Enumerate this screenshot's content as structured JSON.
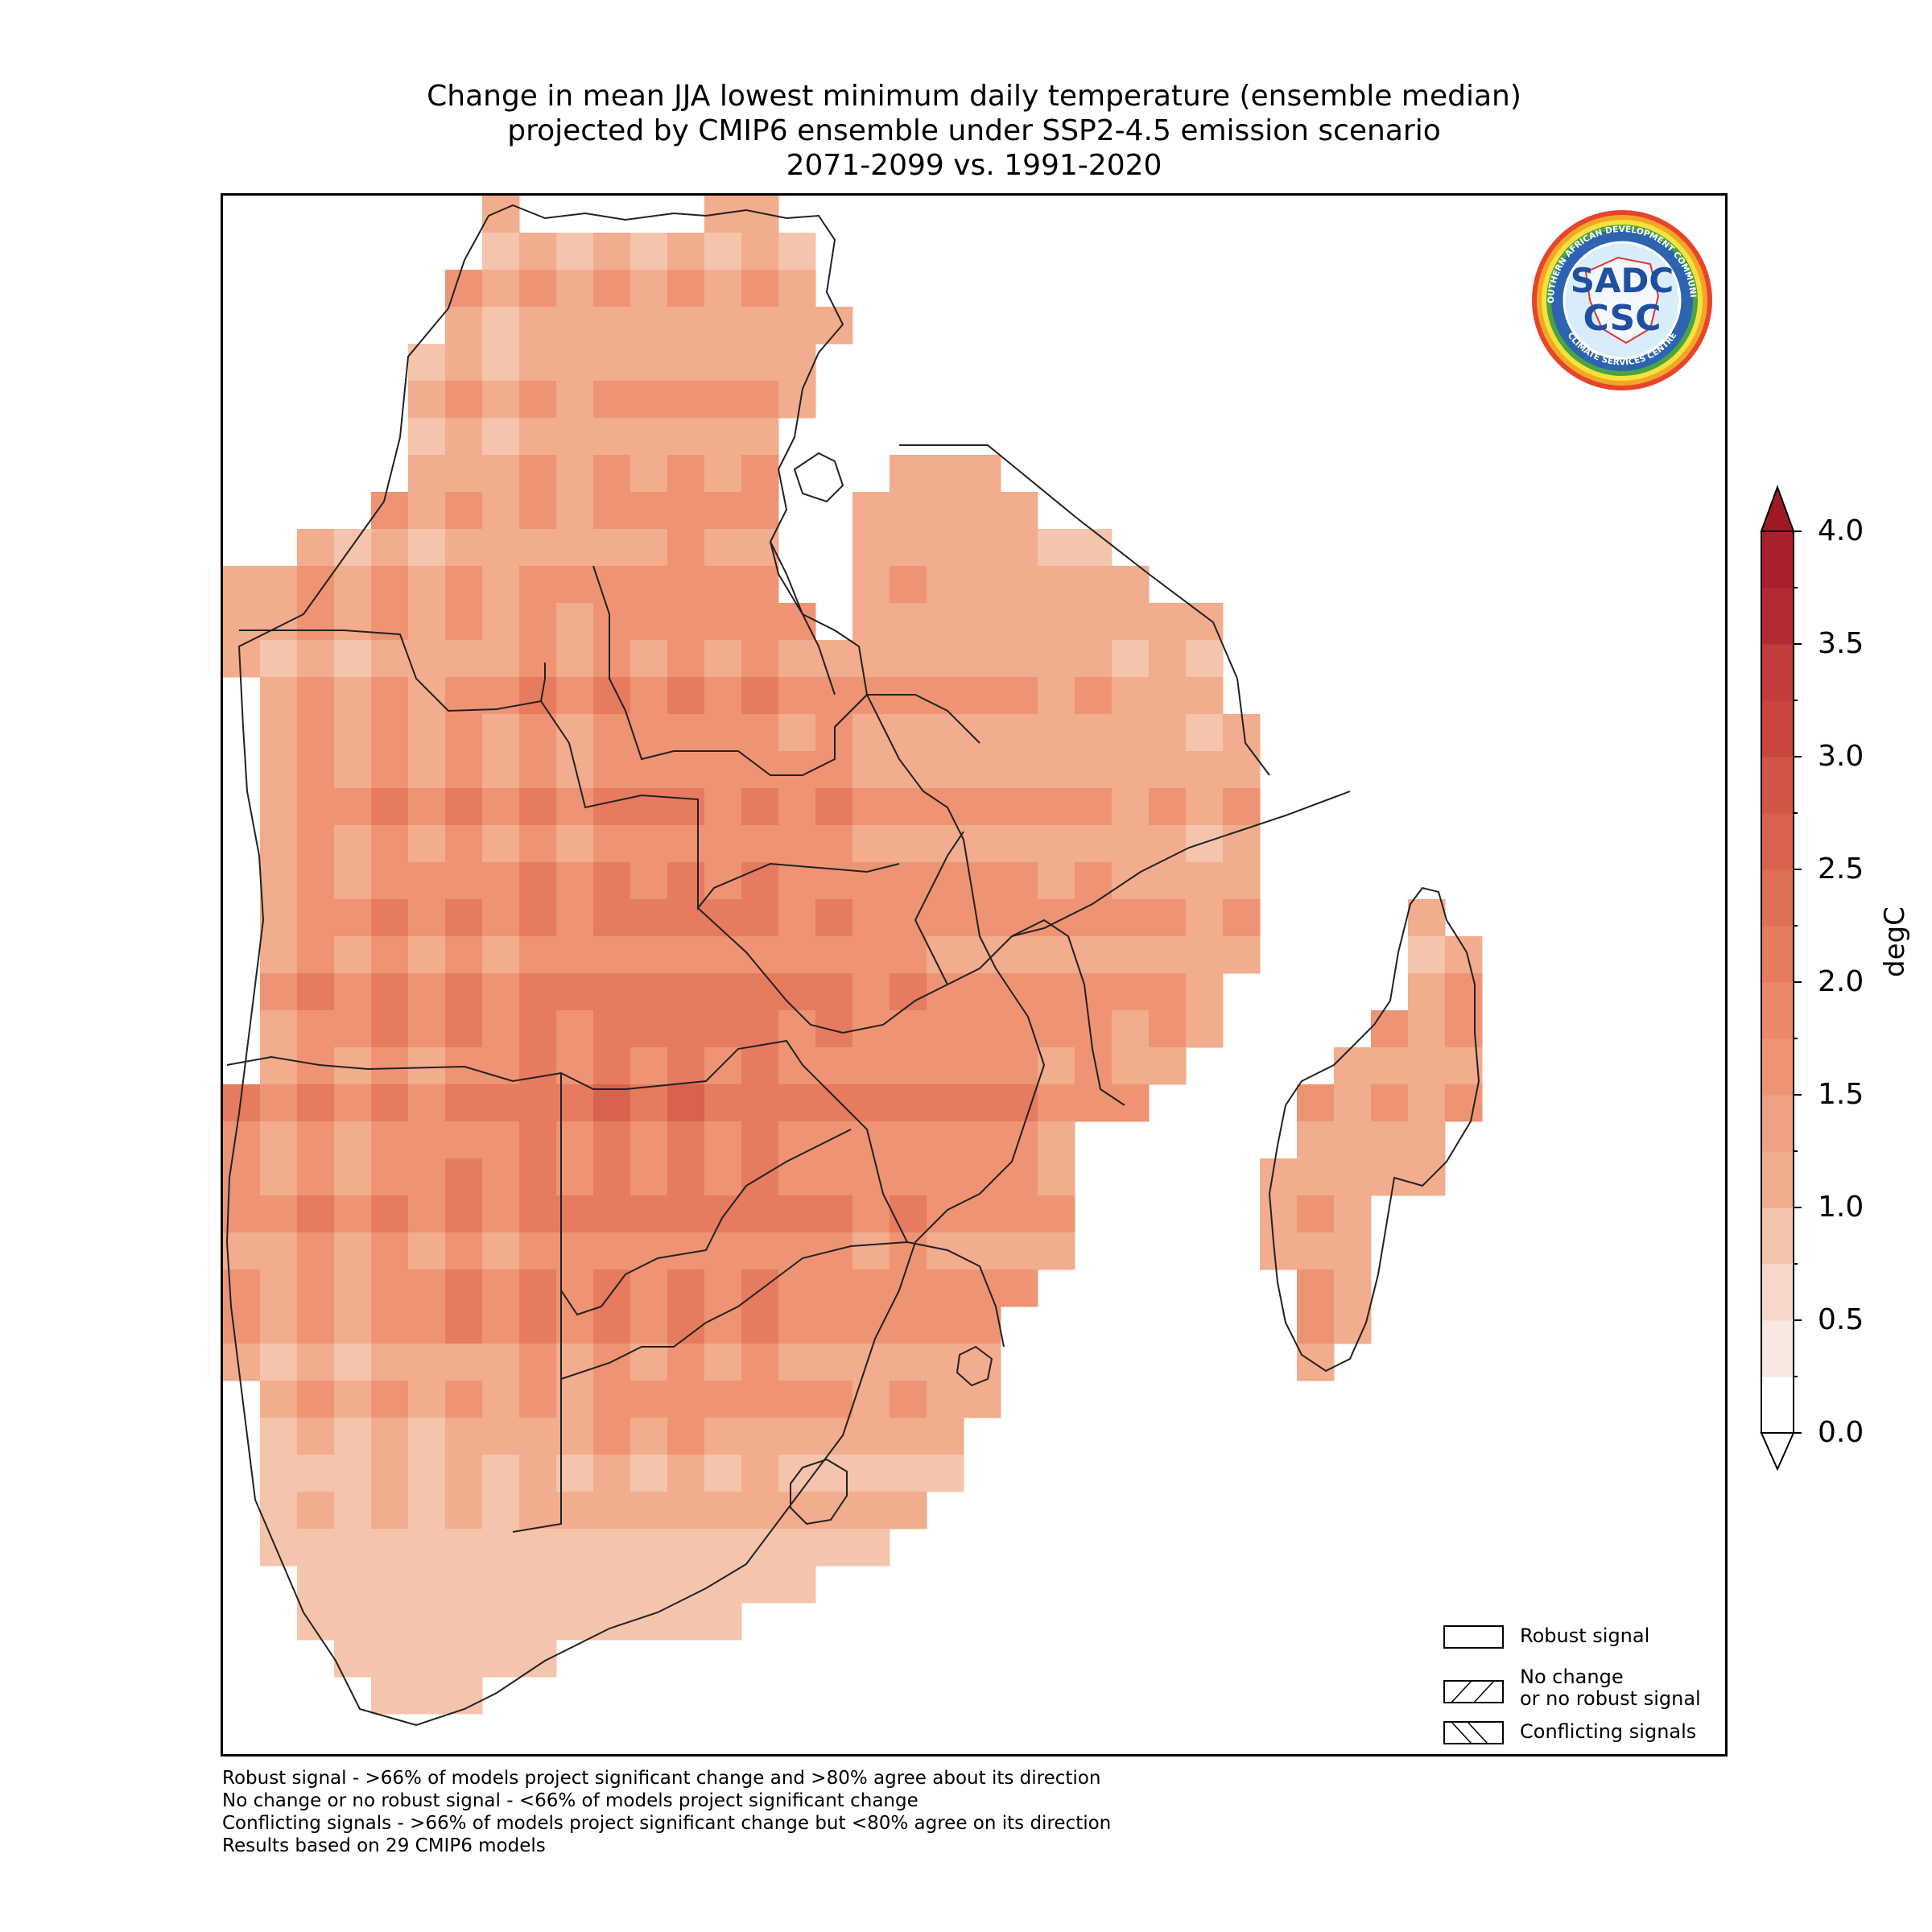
{
  "title": {
    "line1": "Change in mean JJA lowest minimum daily temperature (ensemble median)",
    "line2": "projected by CMIP6 ensemble under SSP2-4.5 emission scenario",
    "line3": "2071-2099 vs. 1991-2020"
  },
  "logo": {
    "text_top": "SOUTHERN AFRICAN DEVELOPMENT COMMUNITY",
    "text_bottom": "CLIMATE SERVICES CENTRE",
    "monogram": "SADC",
    "abbr": "CSC"
  },
  "colors": {
    "c0": "#ffffff",
    "c1": "#f9e8e1",
    "c2": "#f7d9cb",
    "c3": "#f5c4ac",
    "c4": "#f2ac8e",
    "c5": "#ee9474",
    "c6": "#e67b5f",
    "c7": "#d9624e",
    "c8": "#c7473f",
    "c9": "#b42a32"
  },
  "legend": {
    "items": [
      {
        "label": "Robust signal",
        "hatch": "none"
      },
      {
        "label": "No change\nor no robust signal",
        "hatch": "forward"
      },
      {
        "label": "Conflicting signals",
        "hatch": "back"
      }
    ]
  },
  "colorbar": {
    "label": "degC",
    "min": 0.0,
    "max": 4.0,
    "step": 0.25,
    "tick_labels": [
      "0.0",
      "0.5",
      "1.0",
      "1.5",
      "2.0",
      "2.5",
      "3.0",
      "3.5",
      "4.0"
    ]
  },
  "footnotes": [
    "Robust signal - >66% of models project significant change and >80% agree about its direction",
    "No change or no robust signal - <66% of models project significant change",
    "Conflicting signals - >66% of models project significant change but <80% agree on its direction",
    "Results based on 29 CMIP6 models"
  ]
}
